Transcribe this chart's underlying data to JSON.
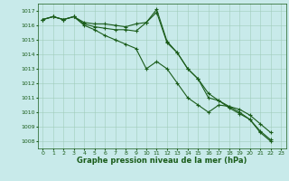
{
  "series1": [
    1016.4,
    1016.6,
    1016.4,
    1016.6,
    1016.2,
    1016.1,
    1016.1,
    1016.0,
    1015.9,
    1016.1,
    1016.2,
    1016.9,
    1014.8,
    1014.1,
    1013.0,
    1012.3,
    1011.0,
    1010.8,
    1010.4,
    1010.0,
    1009.5,
    1008.7,
    1008.1
  ],
  "series2": [
    1016.4,
    1016.6,
    1016.4,
    1016.6,
    1016.0,
    1015.7,
    1015.3,
    1015.0,
    1014.7,
    1014.4,
    1013.0,
    1013.5,
    1013.0,
    1012.0,
    1011.0,
    1010.5,
    1010.0,
    1010.5,
    1010.4,
    1010.2,
    1009.8,
    1009.2,
    1008.6
  ],
  "series3": [
    1016.4,
    1016.6,
    1016.4,
    1016.6,
    1016.1,
    1015.9,
    1015.8,
    1015.7,
    1015.7,
    1015.6,
    1016.2,
    1017.1,
    1014.9,
    1014.1,
    1013.0,
    1012.3,
    1011.3,
    1010.8,
    1010.3,
    1009.9,
    1009.5,
    1008.6,
    1008.0
  ],
  "x": [
    0,
    1,
    2,
    3,
    4,
    5,
    6,
    7,
    8,
    9,
    10,
    11,
    12,
    13,
    14,
    15,
    16,
    17,
    18,
    19,
    20,
    21,
    22
  ],
  "ylim": [
    1007.5,
    1017.5
  ],
  "yticks": [
    1008,
    1009,
    1010,
    1011,
    1012,
    1013,
    1014,
    1015,
    1016,
    1017
  ],
  "xticks": [
    0,
    1,
    2,
    3,
    4,
    5,
    6,
    7,
    8,
    9,
    10,
    11,
    12,
    13,
    14,
    15,
    16,
    17,
    18,
    19,
    20,
    21,
    22,
    23
  ],
  "xlabel": "Graphe pression niveau de la mer (hPa)",
  "line_color": "#1a5c1a",
  "marker": "+",
  "bg_color": "#c8eaea",
  "grid_color": "#a0ccbb",
  "xlabel_color": "#1a5c1a",
  "tick_color": "#1a5c1a",
  "tick_fontsize": 4.5,
  "xlabel_fontsize": 6.0,
  "linewidth": 0.8,
  "markersize": 3.0,
  "markeredgewidth": 0.8
}
